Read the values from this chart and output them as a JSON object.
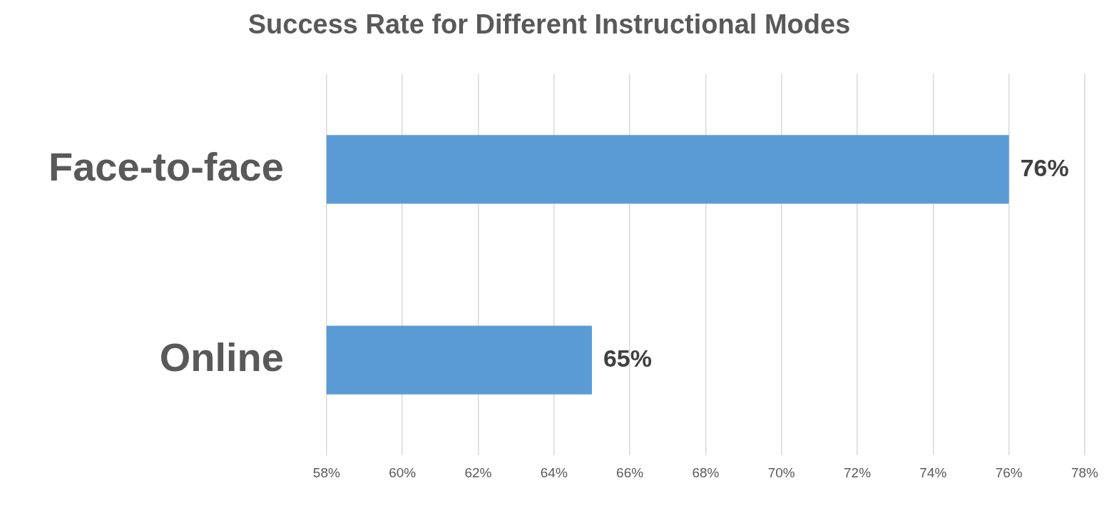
{
  "chart_data": {
    "type": "bar",
    "orientation": "horizontal",
    "title": "Success Rate for Different Instructional Modes",
    "categories": [
      "Face-to-face",
      "Online"
    ],
    "values": [
      76,
      65
    ],
    "color": "#5b9bd5",
    "value_labels": [
      "76%",
      "65%"
    ],
    "xlim": [
      58,
      78
    ],
    "xticks": [
      {
        "value": 58,
        "label": "58%"
      },
      {
        "value": 60,
        "label": "60%"
      },
      {
        "value": 62,
        "label": "62%"
      },
      {
        "value": 64,
        "label": "64%"
      },
      {
        "value": 66,
        "label": "66%"
      },
      {
        "value": 68,
        "label": "68%"
      },
      {
        "value": 70,
        "label": "70%"
      },
      {
        "value": 72,
        "label": "72%"
      },
      {
        "value": 74,
        "label": "74%"
      },
      {
        "value": 76,
        "label": "76%"
      },
      {
        "value": 78,
        "label": "78%"
      }
    ],
    "grid": "x"
  }
}
